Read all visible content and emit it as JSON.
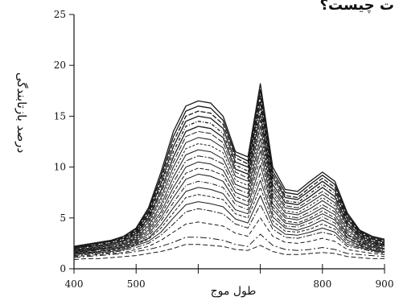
{
  "page_title_fragment": "ت چیست؟",
  "chart_data": {
    "type": "line",
    "xlabel": "طول موج",
    "ylabel": "درصد بازتابندگی",
    "xlim": [
      400,
      900
    ],
    "ylim": [
      0,
      25
    ],
    "x_ticks": [
      400,
      500,
      600,
      700,
      800,
      900
    ],
    "x_tick_labels": [
      "400",
      "500",
      "",
      "",
      "800",
      "900"
    ],
    "y_ticks": [
      0,
      5,
      10,
      15,
      20,
      25
    ],
    "grid": false,
    "legend": "none",
    "series_count": 22,
    "line_color": "#1a1a1a",
    "x": [
      400,
      420,
      440,
      460,
      480,
      500,
      520,
      540,
      560,
      580,
      600,
      620,
      640,
      660,
      680,
      700,
      720,
      740,
      760,
      780,
      800,
      820,
      840,
      860,
      880,
      900
    ],
    "series": [
      {
        "values": [
          2.2,
          2.4,
          2.6,
          2.8,
          3.2,
          4.0,
          6.0,
          9.5,
          13.5,
          16.0,
          16.5,
          16.3,
          15.0,
          11.5,
          11.0,
          18.2,
          10.0,
          7.8,
          7.6,
          8.6,
          9.5,
          8.6,
          5.5,
          3.8,
          3.2,
          2.9
        ]
      },
      {
        "values": [
          2.2,
          2.4,
          2.6,
          2.8,
          3.2,
          3.9,
          5.8,
          9.1,
          13.0,
          15.5,
          16.0,
          15.8,
          14.6,
          11.2,
          10.6,
          17.6,
          9.6,
          7.5,
          7.3,
          8.3,
          9.2,
          8.3,
          5.3,
          3.7,
          3.1,
          2.8
        ]
      },
      {
        "values": [
          2.1,
          2.3,
          2.5,
          2.7,
          3.1,
          3.8,
          5.6,
          8.8,
          12.5,
          15.0,
          15.5,
          15.3,
          14.2,
          10.9,
          10.3,
          17.0,
          9.3,
          7.2,
          7.0,
          8.0,
          8.9,
          8.0,
          5.1,
          3.6,
          3.0,
          2.7
        ]
      },
      {
        "values": [
          2.1,
          2.3,
          2.5,
          2.7,
          3.0,
          3.7,
          5.4,
          8.4,
          12.0,
          14.5,
          15.0,
          14.8,
          13.8,
          10.5,
          10.0,
          16.4,
          9.0,
          7.0,
          6.8,
          7.7,
          8.6,
          7.7,
          4.9,
          3.5,
          2.9,
          2.6
        ]
      },
      {
        "values": [
          2.0,
          2.2,
          2.4,
          2.6,
          2.9,
          3.6,
          5.2,
          8.1,
          11.5,
          14.0,
          14.5,
          14.3,
          13.3,
          10.2,
          9.6,
          15.8,
          8.7,
          6.7,
          6.5,
          7.4,
          8.3,
          7.4,
          4.7,
          3.4,
          2.8,
          2.5
        ]
      },
      {
        "values": [
          2.0,
          2.2,
          2.3,
          2.5,
          2.8,
          3.5,
          5.0,
          7.7,
          11.0,
          13.5,
          14.0,
          13.8,
          12.9,
          9.8,
          9.3,
          15.2,
          8.3,
          6.5,
          6.3,
          7.1,
          8.0,
          7.1,
          4.5,
          3.3,
          2.7,
          2.4
        ]
      },
      {
        "values": [
          1.9,
          2.1,
          2.3,
          2.5,
          2.8,
          3.4,
          4.8,
          7.4,
          10.5,
          13.0,
          13.5,
          13.3,
          12.4,
          9.5,
          8.9,
          14.6,
          8.0,
          6.2,
          6.0,
          6.8,
          7.6,
          6.8,
          4.3,
          3.2,
          2.6,
          2.3
        ]
      },
      {
        "values": [
          1.9,
          2.0,
          2.2,
          2.4,
          2.7,
          3.3,
          4.6,
          7.0,
          10.0,
          12.4,
          12.9,
          12.7,
          11.9,
          9.1,
          8.6,
          14.0,
          7.7,
          6.0,
          5.8,
          6.5,
          7.3,
          6.5,
          4.2,
          3.1,
          2.5,
          2.3
        ]
      },
      {
        "values": [
          1.8,
          2.0,
          2.1,
          2.3,
          2.6,
          3.2,
          4.4,
          6.7,
          9.5,
          11.8,
          12.3,
          12.1,
          11.4,
          8.7,
          8.2,
          13.4,
          7.4,
          5.7,
          5.5,
          6.2,
          7.0,
          6.2,
          4.0,
          3.0,
          2.5,
          2.2
        ]
      },
      {
        "values": [
          1.8,
          1.9,
          2.1,
          2.3,
          2.5,
          3.1,
          4.2,
          6.3,
          9.0,
          11.2,
          11.7,
          11.5,
          10.8,
          8.3,
          7.8,
          12.8,
          7.1,
          5.5,
          5.3,
          5.9,
          6.7,
          5.9,
          3.8,
          2.9,
          2.4,
          2.2
        ]
      },
      {
        "values": [
          1.7,
          1.9,
          2.0,
          2.2,
          2.4,
          3.0,
          4.0,
          6.0,
          8.5,
          10.6,
          11.1,
          10.9,
          10.3,
          7.9,
          7.4,
          12.2,
          6.8,
          5.2,
          5.0,
          5.6,
          6.3,
          5.6,
          3.6,
          2.8,
          2.3,
          2.1
        ]
      },
      {
        "values": [
          1.7,
          1.8,
          2.0,
          2.1,
          2.4,
          2.9,
          3.8,
          5.6,
          8.0,
          10.0,
          10.5,
          10.3,
          9.7,
          7.5,
          7.0,
          11.6,
          6.4,
          5.0,
          4.8,
          5.3,
          6.0,
          5.3,
          3.4,
          2.7,
          2.2,
          2.0
        ]
      },
      {
        "values": [
          1.6,
          1.8,
          1.9,
          2.1,
          2.3,
          2.8,
          3.6,
          5.3,
          7.5,
          9.4,
          9.9,
          9.7,
          9.2,
          7.1,
          6.6,
          10.9,
          6.1,
          4.7,
          4.5,
          5.0,
          5.7,
          5.0,
          3.3,
          2.6,
          2.2,
          2.0
        ]
      },
      {
        "values": [
          1.6,
          1.7,
          1.9,
          2.0,
          2.2,
          2.7,
          3.4,
          5.0,
          7.0,
          8.8,
          9.3,
          9.1,
          8.6,
          6.7,
          6.2,
          10.2,
          5.8,
          4.5,
          4.3,
          4.8,
          5.4,
          4.8,
          3.1,
          2.5,
          2.1,
          1.9
        ]
      },
      {
        "values": [
          1.5,
          1.7,
          1.8,
          1.9,
          2.1,
          2.6,
          3.2,
          4.7,
          6.5,
          8.2,
          8.6,
          8.4,
          8.0,
          6.3,
          5.8,
          9.4,
          5.4,
          4.2,
          4.1,
          4.5,
          5.1,
          4.5,
          3.0,
          2.4,
          2.0,
          1.8
        ]
      },
      {
        "values": [
          1.5,
          1.6,
          1.7,
          1.9,
          2.1,
          2.5,
          3.0,
          4.3,
          6.0,
          7.6,
          8.0,
          7.8,
          7.4,
          5.8,
          5.4,
          8.7,
          5.1,
          4.0,
          3.8,
          4.2,
          4.8,
          4.2,
          2.8,
          2.3,
          1.9,
          1.7
        ]
      },
      {
        "values": [
          1.4,
          1.5,
          1.7,
          1.8,
          2.0,
          2.4,
          2.9,
          4.0,
          5.5,
          7.0,
          7.3,
          7.1,
          6.8,
          5.4,
          5.0,
          8.0,
          4.7,
          3.7,
          3.6,
          3.9,
          4.4,
          3.9,
          2.6,
          2.2,
          1.9,
          1.7
        ]
      },
      {
        "values": [
          1.4,
          1.5,
          1.6,
          1.7,
          1.9,
          2.3,
          2.7,
          3.6,
          5.0,
          6.3,
          6.6,
          6.4,
          6.1,
          4.9,
          4.5,
          7.2,
          4.3,
          3.4,
          3.3,
          3.6,
          4.0,
          3.6,
          2.4,
          2.1,
          1.8,
          1.6
        ]
      },
      {
        "values": [
          1.3,
          1.4,
          1.5,
          1.6,
          1.8,
          2.1,
          2.5,
          3.3,
          4.4,
          5.6,
          5.9,
          5.7,
          5.4,
          4.4,
          4.0,
          6.3,
          3.9,
          3.1,
          3.0,
          3.3,
          3.6,
          3.3,
          2.2,
          2.0,
          1.7,
          1.5
        ]
      },
      {
        "values": [
          1.2,
          1.3,
          1.4,
          1.5,
          1.6,
          1.9,
          2.2,
          2.8,
          3.6,
          4.4,
          4.6,
          4.4,
          4.2,
          3.5,
          3.2,
          5.0,
          3.2,
          2.6,
          2.5,
          2.7,
          3.0,
          2.7,
          1.9,
          1.7,
          1.5,
          1.4
        ]
      },
      {
        "values": [
          1.1,
          1.2,
          1.3,
          1.4,
          1.5,
          1.7,
          1.9,
          2.2,
          2.6,
          3.1,
          3.1,
          3.0,
          2.8,
          2.4,
          2.2,
          3.4,
          2.3,
          1.9,
          1.8,
          1.9,
          2.1,
          1.9,
          1.5,
          1.4,
          1.3,
          1.2
        ]
      },
      {
        "values": [
          0.9,
          1.0,
          1.0,
          1.1,
          1.2,
          1.3,
          1.5,
          1.7,
          2.0,
          2.4,
          2.4,
          2.3,
          2.2,
          1.9,
          1.8,
          2.3,
          1.7,
          1.4,
          1.4,
          1.5,
          1.6,
          1.5,
          1.2,
          1.1,
          1.0,
          1.0
        ]
      }
    ]
  }
}
